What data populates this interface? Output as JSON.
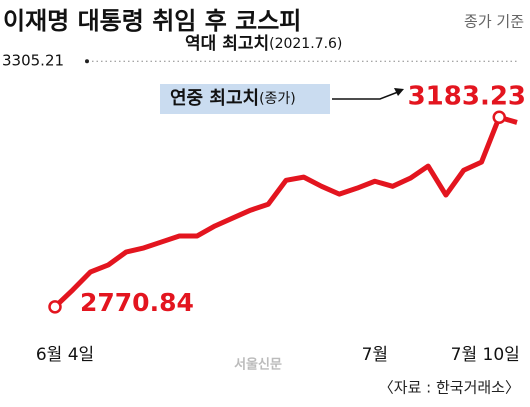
{
  "chart_data": {
    "type": "line",
    "title": "이재명 대통령 취임 후 코스피",
    "subtitle": "종가 기준",
    "categories": [
      "6월 4일",
      null,
      null,
      null,
      null,
      null,
      null,
      null,
      null,
      null,
      null,
      null,
      null,
      null,
      null,
      null,
      null,
      null,
      "7월",
      null,
      null,
      null,
      null,
      null,
      null,
      "7월 10일",
      null
    ],
    "values": [
      2770.84,
      2807.7,
      2846.8,
      2862.0,
      2890.0,
      2899.0,
      2912.0,
      2925.0,
      2925.0,
      2946.7,
      2964.0,
      2981.0,
      2994.0,
      3046.0,
      3053.0,
      3033.0,
      3016.0,
      3029.0,
      3044.0,
      3033.0,
      3050.8,
      3077.0,
      3014.0,
      3068.0,
      3085.6,
      3183.23,
      3172.0
    ],
    "color": "#e3151f",
    "ylim": [
      2740,
      3310
    ],
    "reference_line": {
      "value": 3305.21,
      "label": "역대 최고치",
      "note": "(2021.7.6)"
    },
    "max_label": "연중 최고치",
    "max_label_note": "(종가)",
    "source": "〈자료 : 한국거래소〉",
    "watermark": "서울신문"
  }
}
